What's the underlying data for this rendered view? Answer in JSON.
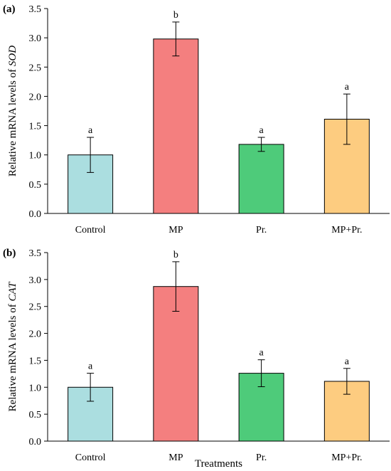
{
  "chart_data": [
    {
      "type": "bar",
      "panel_label": "(a)",
      "ylabel_prefix": "Relative mRNA levels of ",
      "ylabel_gene": "SOD",
      "xlabel": "",
      "categories": [
        "Control",
        "MP",
        "Pr.",
        "MP+Pr."
      ],
      "values": [
        1.0,
        2.98,
        1.18,
        1.61
      ],
      "errors": [
        0.3,
        0.29,
        0.12,
        0.43
      ],
      "significance": [
        "a",
        "b",
        "a",
        "a"
      ],
      "bar_colors": [
        "#abdee0",
        "#f47f7f",
        "#4ecb7a",
        "#fdcc80"
      ],
      "ylim": [
        0,
        3.5
      ],
      "yticks": [
        "0.0",
        "0.5",
        "1.0",
        "1.5",
        "2.0",
        "2.5",
        "3.0",
        "3.5"
      ],
      "grid": false
    },
    {
      "type": "bar",
      "panel_label": "(b)",
      "ylabel_prefix": "Relative mRNA levels of ",
      "ylabel_gene": "CAT",
      "xlabel": "Treatments",
      "categories": [
        "Control",
        "MP",
        "Pr.",
        "MP+Pr."
      ],
      "values": [
        1.0,
        2.87,
        1.26,
        1.11
      ],
      "errors": [
        0.26,
        0.46,
        0.25,
        0.24
      ],
      "significance": [
        "a",
        "b",
        "a",
        "a"
      ],
      "bar_colors": [
        "#abdee0",
        "#f47f7f",
        "#4ecb7a",
        "#fdcc80"
      ],
      "ylim": [
        0,
        3.5
      ],
      "yticks": [
        "0.0",
        "0.5",
        "1.0",
        "1.5",
        "2.0",
        "2.5",
        "3.0",
        "3.5"
      ],
      "grid": false
    }
  ]
}
